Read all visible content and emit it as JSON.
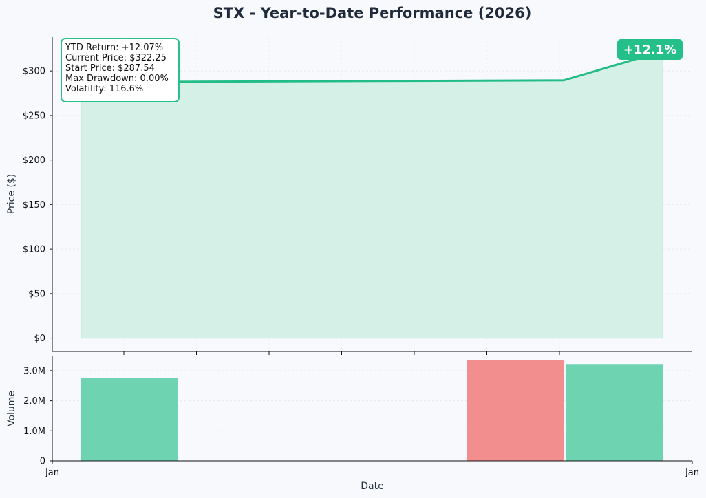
{
  "chart_data": [
    {
      "type": "area",
      "title": "STX - Year-to-Date Performance (2026)",
      "ylabel": "Price ($)",
      "ylim": [
        -15,
        338
      ],
      "yticks": [
        0,
        50,
        100,
        150,
        200,
        250,
        300
      ],
      "ytick_labels": [
        "$0",
        "$50",
        "$100",
        "$150",
        "$200",
        "$250",
        "$300"
      ],
      "x": [
        0,
        0.83,
        1.0
      ],
      "values": [
        287.54,
        289.5,
        322.25
      ],
      "line_color": "#22bd86",
      "fill_color": "#d5f0e6",
      "grid": true,
      "stats": {
        "ytd_return": "YTD Return: +12.07%",
        "current_price": "Current Price: $322.25",
        "start_price": "Start Price: $287.54",
        "max_drawdown": "Max Drawdown: 0.00%",
        "volatility": "Volatility: 116.6%"
      },
      "badge": "+12.1%"
    },
    {
      "type": "bar",
      "ylabel": "Volume",
      "xlabel": "Date",
      "ylim": [
        0,
        3.5
      ],
      "yticks": [
        0,
        1,
        2,
        3
      ],
      "ytick_labels": [
        "0",
        "1.0M",
        "2.0M",
        "3.0M"
      ],
      "xtick_labels": [
        "Jan",
        "Jan"
      ],
      "bars": [
        {
          "x": 0.0,
          "value": 2.75,
          "color": "#6dd3b0"
        },
        {
          "x": 0.83,
          "value": 3.35,
          "color": "#f28e8e"
        },
        {
          "x": 1.0,
          "value": 3.22,
          "color": "#6dd3b0"
        }
      ]
    }
  ]
}
